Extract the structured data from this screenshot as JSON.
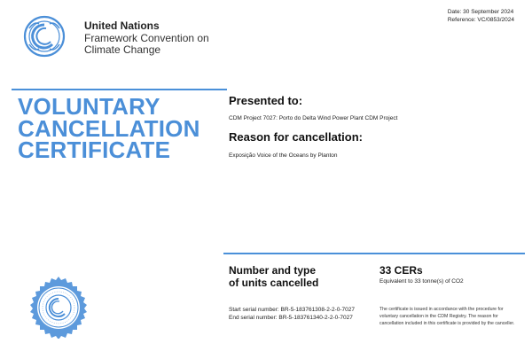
{
  "header": {
    "org_name": "United Nations",
    "org_line1": "Framework Convention on",
    "org_line2": "Climate Change",
    "date": "Date: 30 September 2024",
    "reference": "Reference: VC/0853/2024"
  },
  "certificate": {
    "title_line1": "VOLUNTARY",
    "title_line2": "CANCELLATION",
    "title_line3": "CERTIFICATE",
    "presented_label": "Presented to:",
    "presented_value": "CDM Project 7027: Porto do Delta Wind Power Plant CDM Project",
    "reason_label": "Reason for cancellation:",
    "reason_value": "Exposição Voice of the Oceans by Planton"
  },
  "units": {
    "label_line1": "Number and type",
    "label_line2": "of units cancelled",
    "cers": "33 CERs",
    "equivalent": "Equivalent to 33 tonne(s) of CO2",
    "start_serial": "Start serial number:  BR-5-183761308-2-2-0-7027",
    "end_serial": "End serial number:  BR-5-183761340-2-2-0-7027",
    "notice": "The certificate is issued in accordance with the procedure for voluntary cancellation in the CDM Registry. The reason for cancellation included in this certificate is provided by the canceller."
  },
  "colors": {
    "brand_blue": "#4b8fd8",
    "rule_blue": "#4a90d9"
  },
  "icons": {
    "logo": "unfccc-logo-icon",
    "seal": "cdm-registry-seal-icon"
  }
}
